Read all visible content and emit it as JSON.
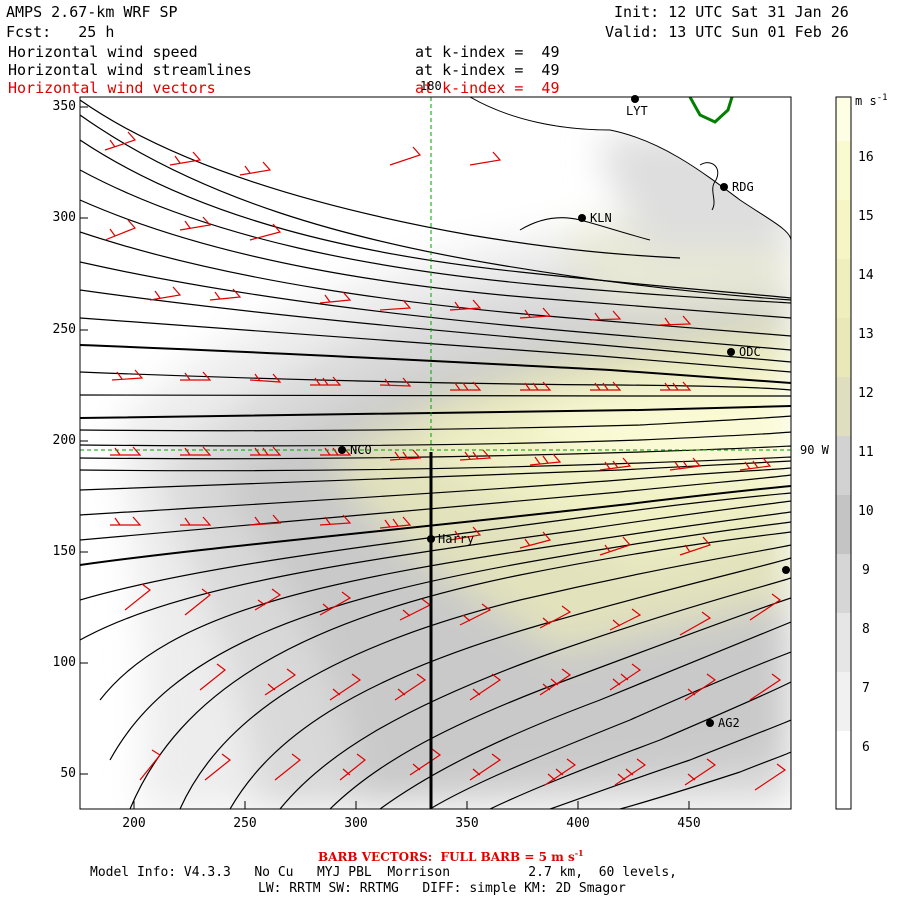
{
  "header": {
    "model": "AMPS 2.67-km WRF SP",
    "forecast": "Fcst:   25 h",
    "init": "Init: 12 UTC Sat 31 Jan 26",
    "valid": "Valid: 13 UTC Sun 01 Feb 26"
  },
  "fields": [
    {
      "name": "Horizontal wind speed",
      "level": "at k-index =  49",
      "color": "#000000"
    },
    {
      "name": "Horizontal wind streamlines",
      "level": "at k-index =  49",
      "color": "#000000"
    },
    {
      "name": "Horizontal wind vectors",
      "level": "at k-index =  49",
      "color": "#e00000"
    }
  ],
  "map": {
    "x_ticks": [
      "200",
      "250",
      "300",
      "350",
      "400",
      "450"
    ],
    "y_ticks": [
      "350",
      "300",
      "250",
      "200",
      "150",
      "100",
      "50"
    ],
    "meridian_label": "180",
    "parallel_label": "90 W",
    "stations": [
      {
        "name": "LYT"
      },
      {
        "name": "RDG"
      },
      {
        "name": "KLN"
      },
      {
        "name": "ODC"
      },
      {
        "name": "NCO"
      },
      {
        "name": "Harry"
      },
      {
        "name": "AG2"
      },
      {
        "name": ""
      }
    ]
  },
  "colorbar": {
    "unit": "m s",
    "unit_exp": "-1",
    "ticks": [
      "16",
      "15",
      "14",
      "13",
      "12",
      "11",
      "10",
      "9",
      "8",
      "7",
      "6"
    ],
    "colors": [
      "#fefee4",
      "#fafad0",
      "#f5f5c6",
      "#efefbe",
      "#e8e8b8",
      "#dfdfc0",
      "#d2d2d2",
      "#c4c4c4",
      "#d6d6d6",
      "#e6e6e6",
      "#f1f1f1",
      "#ffffff"
    ]
  },
  "footer": {
    "barb_label": "BARB VECTORS:  FULL BARB = 5 m s",
    "barb_exp": "-1",
    "line1": "Model Info: V4.3.3   No Cu   MYJ PBL  Morrison          2.7 km,  60 levels,",
    "line2": "LW: RRTM SW: RRTMG   DIFF: simple KM: 2D Smagor"
  }
}
